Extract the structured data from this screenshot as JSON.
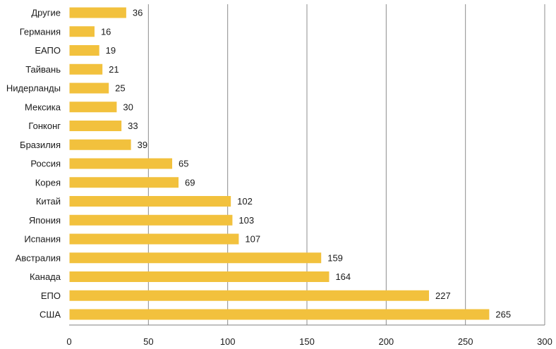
{
  "chart_data": {
    "type": "bar",
    "orientation": "horizontal",
    "categories": [
      "Другие",
      "Германия",
      "ЕАПО",
      "Тайвань",
      "Нидерланды",
      "Мексика",
      "Гонконг",
      "Бразилия",
      "Россия",
      "Корея",
      "Китай",
      "Япония",
      "Испания",
      "Австралия",
      "Канада",
      "ЕПО",
      "США"
    ],
    "values": [
      36,
      16,
      19,
      21,
      25,
      30,
      33,
      39,
      65,
      69,
      102,
      103,
      107,
      159,
      164,
      227,
      265
    ],
    "xlim": [
      0,
      300
    ],
    "xticks": [
      0,
      50,
      100,
      150,
      200,
      250,
      300
    ],
    "grid": "vertical",
    "bar_color": "#F2C13D",
    "axis_color": "#808080",
    "show_data_labels": true
  }
}
